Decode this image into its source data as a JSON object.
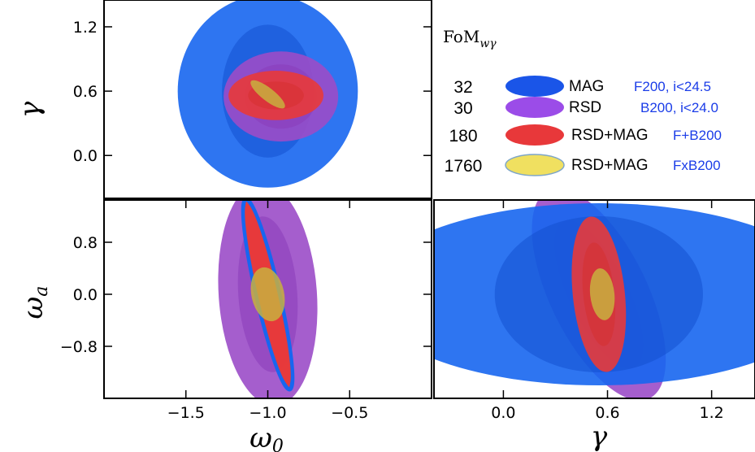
{
  "chart_data": [
    {
      "type": "contour",
      "panel": "top-left",
      "xlim": [
        -2.0,
        0.0
      ],
      "ylim": [
        -0.4,
        1.45
      ],
      "ylabel": "γ",
      "yticks": [
        {
          "v": 1.2,
          "label": "1.2"
        },
        {
          "v": 0.6,
          "label": "0.6"
        },
        {
          "v": 0.0,
          "label": "0.0"
        }
      ],
      "xticks": [],
      "ellipses": [
        {
          "probe": "MAG",
          "cx": -1.0,
          "cy": 0.6,
          "rx": 0.55,
          "ry": 0.9,
          "rot": 0,
          "rx_in": 0.28,
          "ry_in": 0.62,
          "rot_in": 0
        },
        {
          "probe": "RSD",
          "cx": -0.92,
          "cy": 0.55,
          "rx": 0.35,
          "ry": 0.42,
          "rot": 0,
          "rx_in": 0.22,
          "ry_in": 0.3,
          "rot_in": 0
        },
        {
          "probe": "RSD+MAG",
          "cx": -0.95,
          "cy": 0.56,
          "rx": 0.29,
          "ry": 0.23,
          "rot": 0,
          "rx_in": 0.17,
          "ry_in": 0.13,
          "rot_in": 0
        },
        {
          "probe": "RSD+MAG FxB",
          "cx": -1.0,
          "cy": 0.57,
          "rx": 0.13,
          "ry": 0.06,
          "rot": 38,
          "rx_in": 0,
          "ry_in": 0,
          "rot_in": 0
        }
      ]
    },
    {
      "type": "contour",
      "panel": "bottom-left",
      "xlim": [
        -2.0,
        0.0
      ],
      "ylim": [
        -1.6,
        1.45
      ],
      "xlabel": "ω",
      "xlabel_sub": "0",
      "ylabel": "ω",
      "ylabel_sub": "a",
      "yticks": [
        {
          "v": 0.8,
          "label": "0.8"
        },
        {
          "v": 0.0,
          "label": "0.0"
        },
        {
          "v": -0.8,
          "label": "−0.8"
        }
      ],
      "xticks": [
        {
          "v": -1.5,
          "label": "−1.5"
        },
        {
          "v": -1.0,
          "label": "−1.0"
        },
        {
          "v": -0.5,
          "label": "−0.5"
        }
      ],
      "ellipses": [
        {
          "probe": "RSD",
          "cx": -1.0,
          "cy": 0.0,
          "rx": 0.3,
          "ry": 1.72,
          "rot": -4,
          "rx_in": 0.18,
          "ry_in": 1.2,
          "rot_in": -4
        },
        {
          "probe": "MAG",
          "cx": -1.0,
          "cy": 0.0,
          "rx": 0.07,
          "ry": 1.5,
          "rot": -13,
          "rx_in": 0,
          "ry_in": 0,
          "rot_in": 0
        },
        {
          "probe": "RSD+MAG",
          "cx": -1.0,
          "cy": 0.0,
          "rx": 0.06,
          "ry": 1.43,
          "rot": -13,
          "rx_in": 0,
          "ry_in": 0,
          "rot_in": 0
        },
        {
          "probe": "RSD+MAG FxB",
          "cx": -1.0,
          "cy": 0.0,
          "rx": 0.1,
          "ry": 0.42,
          "rot": -12,
          "rx_in": 0,
          "ry_in": 0,
          "rot_in": 0
        }
      ]
    },
    {
      "type": "contour",
      "panel": "bottom-right",
      "xlim": [
        -0.4,
        1.45
      ],
      "ylim": [
        -1.6,
        1.45
      ],
      "xlabel": "γ",
      "yticks": [],
      "xticks": [
        {
          "v": 0.0,
          "label": "0.0"
        },
        {
          "v": 0.6,
          "label": "0.6"
        },
        {
          "v": 1.2,
          "label": "1.2"
        }
      ],
      "ellipses": [
        {
          "probe": "RSD",
          "cx": 0.55,
          "cy": 0.0,
          "rx": 0.28,
          "ry": 1.78,
          "rot": -26,
          "rx_in": 0.17,
          "ry_in": 1.25,
          "rot_in": -26
        },
        {
          "probe": "MAG",
          "cx": 0.55,
          "cy": 0.0,
          "rx": 1.35,
          "ry": 1.4,
          "rot": 0,
          "rx_in": 0.6,
          "ry_in": 1.2,
          "rot_in": 0
        },
        {
          "probe": "RSD+MAG",
          "cx": 0.55,
          "cy": 0.0,
          "rx": 0.15,
          "ry": 1.2,
          "rot": -6,
          "rx_in": 0.09,
          "ry_in": 0.8,
          "rot_in": -6
        },
        {
          "probe": "RSD+MAG FxB",
          "cx": 0.57,
          "cy": 0.0,
          "rx": 0.07,
          "ry": 0.4,
          "rot": -6,
          "rx_in": 0,
          "ry_in": 0,
          "rot_in": 0
        }
      ]
    }
  ],
  "legend": {
    "title_main": "FoM",
    "title_sub": "wγ",
    "entries": [
      {
        "fom": "32",
        "probe": "MAG",
        "survey": "F200, i<24.5",
        "fill": "#1a55e8"
      },
      {
        "fom": "30",
        "probe": "RSD",
        "survey": "B200, i<24.0",
        "fill": "#9b4ce8"
      },
      {
        "fom": "180",
        "probe": "RSD+MAG",
        "survey": "F+B200",
        "fill": "#e8383a"
      },
      {
        "fom": "1760",
        "probe": "RSD+MAG",
        "survey": "FxB200",
        "fill": "#f0e060"
      }
    ]
  },
  "colors": {
    "MAG": "#1766f0",
    "MAG_inner": "#1450d0",
    "RSD": "#9b4cc8",
    "RSD_inner": "#8a3cba",
    "RSD+MAG": "#e83a3a",
    "RSD+MAG_inner": "#d63030",
    "RSD+MAG FxB": "#c8b040",
    "survey_text": "#1a3ce8",
    "axis": "#000000"
  }
}
